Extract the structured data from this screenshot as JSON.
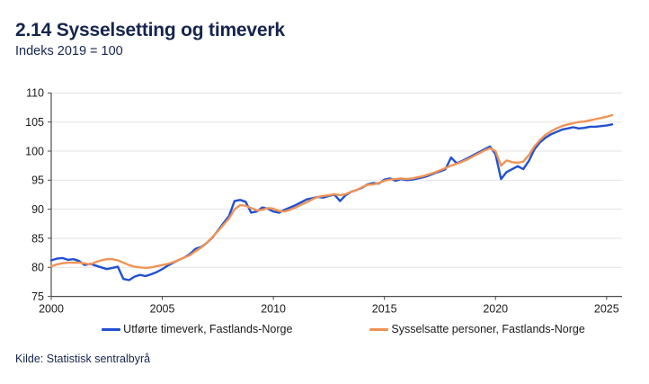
{
  "header": {
    "title": "2.14 Sysselsetting og timeverk",
    "subtitle": "Indeks 2019 = 100"
  },
  "source": "Kilde: Statistisk sentralbyrå",
  "colors": {
    "navy_text": "#16254F",
    "blue_series": "#2150D1",
    "orange_series": "#F09355",
    "gridline": "#E3E3E3",
    "axis": "#4D4D4D",
    "tick_text": "#1A1A1A"
  },
  "legend": {
    "items": [
      {
        "label": "Utførte timeverk, Fastlands-Norge",
        "color": "#2150D1"
      },
      {
        "label": "Sysselsatte personer, Fastlands-Norge",
        "color": "#F09355"
      }
    ]
  },
  "chart_data": {
    "type": "line",
    "title": "2.14 Sysselsetting og timeverk",
    "subtitle": "Indeks 2019 = 100",
    "xlabel": "",
    "ylabel": "Indeks 2019 = 100",
    "x_start": 2000.0,
    "x_step": 0.25,
    "xlim": [
      2000,
      2025.3
    ],
    "ylim": [
      75,
      110
    ],
    "x_ticks": [
      2000,
      2005,
      2010,
      2015,
      2020,
      2025
    ],
    "y_ticks": [
      75,
      80,
      85,
      90,
      95,
      100,
      105,
      110
    ],
    "grid": "horizontal",
    "legend_position": "bottom",
    "series": [
      {
        "name": "Utførte timeverk, Fastlands-Norge",
        "color": "#2150D1",
        "values": [
          81.2,
          81.5,
          81.6,
          81.3,
          81.4,
          81.1,
          80.4,
          80.6,
          80.3,
          80.0,
          79.7,
          79.9,
          80.1,
          78.0,
          77.8,
          78.4,
          78.7,
          78.5,
          78.8,
          79.2,
          79.7,
          80.3,
          80.8,
          81.3,
          81.7,
          82.3,
          83.2,
          83.5,
          84.2,
          85.1,
          86.3,
          87.6,
          88.8,
          91.4,
          91.6,
          91.3,
          89.4,
          89.6,
          90.3,
          90.1,
          89.6,
          89.4,
          89.9,
          90.3,
          90.7,
          91.2,
          91.7,
          91.9,
          92.1,
          92.0,
          92.3,
          92.5,
          91.4,
          92.4,
          93.0,
          93.3,
          93.7,
          94.3,
          94.5,
          94.4,
          95.1,
          95.3,
          94.9,
          95.2,
          95.0,
          95.1,
          95.3,
          95.5,
          95.8,
          96.2,
          96.5,
          96.9,
          98.9,
          97.9,
          98.3,
          98.8,
          99.3,
          99.8,
          100.3,
          100.8,
          99.5,
          95.2,
          96.4,
          96.9,
          97.4,
          96.9,
          98.3,
          100.3,
          101.5,
          102.3,
          102.9,
          103.3,
          103.7,
          103.9,
          104.1,
          103.9,
          104.0,
          104.2,
          104.2,
          104.3,
          104.4,
          104.6
        ]
      },
      {
        "name": "Sysselsatte personer, Fastlands-Norge",
        "color": "#F09355",
        "values": [
          80.2,
          80.5,
          80.7,
          80.8,
          80.8,
          80.8,
          80.7,
          80.5,
          80.9,
          81.2,
          81.4,
          81.4,
          81.2,
          80.8,
          80.4,
          80.1,
          80.0,
          79.9,
          80.0,
          80.2,
          80.4,
          80.6,
          80.9,
          81.3,
          81.7,
          82.1,
          82.8,
          83.4,
          84.2,
          85.2,
          86.2,
          87.3,
          88.4,
          90.0,
          90.7,
          90.6,
          90.2,
          89.8,
          89.9,
          90.2,
          90.1,
          89.7,
          89.6,
          89.9,
          90.3,
          90.8,
          91.2,
          91.7,
          92.1,
          92.3,
          92.4,
          92.6,
          92.4,
          92.6,
          93.0,
          93.3,
          93.8,
          94.2,
          94.3,
          94.5,
          94.9,
          95.1,
          95.2,
          95.3,
          95.2,
          95.3,
          95.5,
          95.7,
          96.0,
          96.3,
          96.7,
          97.1,
          97.5,
          97.8,
          98.2,
          98.6,
          99.1,
          99.6,
          100.1,
          100.5,
          100.0,
          97.5,
          98.4,
          98.1,
          98.0,
          98.2,
          99.3,
          100.8,
          101.9,
          102.8,
          103.4,
          103.9,
          104.3,
          104.6,
          104.8,
          105.0,
          105.1,
          105.3,
          105.5,
          105.7,
          105.9,
          106.2
        ]
      }
    ]
  }
}
